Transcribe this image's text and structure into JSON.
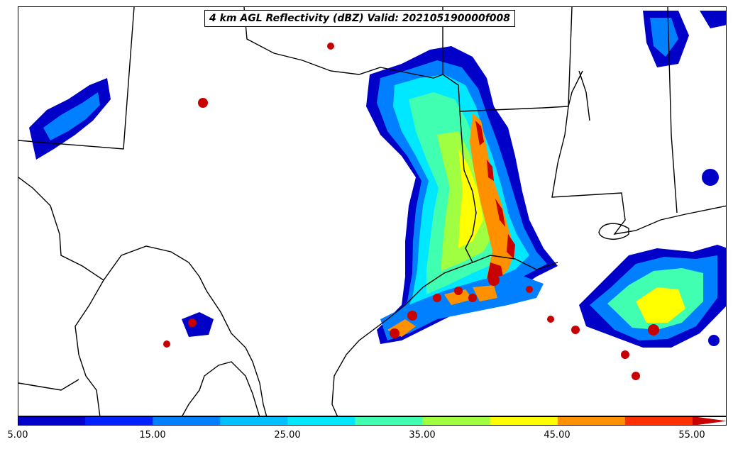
{
  "title": "4 km AGL Reflectivity (dBZ) Valid: 202105190000f008",
  "colorbar": {
    "tick_labels": [
      "5.00",
      "15.00",
      "25.00",
      "35.00",
      "45.00",
      "55.00"
    ],
    "colors": [
      "#0000c8",
      "#0022ff",
      "#0080ff",
      "#00c0ff",
      "#00e8ff",
      "#40ffb0",
      "#a0ff40",
      "#ffff00",
      "#ff9000",
      "#ff3000",
      "#c80000"
    ],
    "extend": "max"
  },
  "chart_data": {
    "type": "heatmap",
    "title": "4 km AGL Reflectivity (dBZ) Valid: 202105190000f008",
    "variable": "Reflectivity",
    "units": "dBZ",
    "valid_time": "202105190000f008",
    "color_levels": [
      5,
      10,
      15,
      20,
      25,
      30,
      35,
      40,
      45,
      50,
      55
    ],
    "colorbar_ticks": [
      5,
      15,
      25,
      35,
      45,
      55
    ]
  }
}
